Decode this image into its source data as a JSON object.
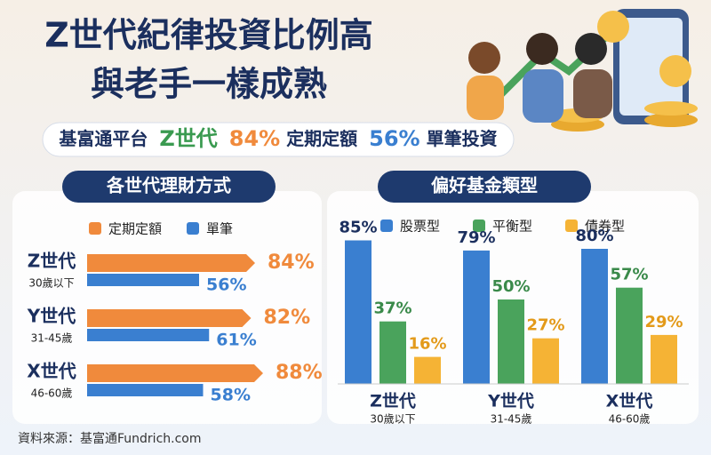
{
  "title_lines": [
    "Z世代紀律投資比例高",
    "與老手一樣成熟"
  ],
  "banner": [
    "基富通平台",
    "Z世代",
    "84%",
    "定期定額",
    "56%",
    "單筆投資"
  ],
  "source": "資料來源：基富通Fundrich.com",
  "chart_data": [
    {
      "type": "hbar",
      "title": "各世代理財方式",
      "categories": [
        "Z世代",
        "Y世代",
        "X世代"
      ],
      "category_notes": [
        "30歲以下",
        "31-45歲",
        "46-60歲"
      ],
      "series": [
        {
          "name": "定期定額",
          "color": "#f08a3c",
          "values": [
            84,
            82,
            88
          ],
          "value_labels": [
            "84%",
            "82%",
            "88%"
          ]
        },
        {
          "name": "單筆",
          "color": "#3a7fd0",
          "values": [
            56,
            61,
            58
          ],
          "value_labels": [
            "56%",
            "61%",
            "58%"
          ]
        }
      ]
    },
    {
      "type": "bar",
      "title": "偏好基金類型",
      "categories": [
        "Z世代",
        "Y世代",
        "X世代"
      ],
      "category_notes": [
        "30歲以下",
        "31-45歲",
        "46-60歲"
      ],
      "series": [
        {
          "name": "股票型",
          "color": "#3a7fd0",
          "values": [
            85,
            79,
            80
          ],
          "value_labels": [
            "85%",
            "79%",
            "80%"
          ]
        },
        {
          "name": "平衡型",
          "color": "#4aa35c",
          "values": [
            37,
            50,
            57
          ],
          "value_labels": [
            "37%",
            "50%",
            "57%"
          ]
        },
        {
          "name": "債券型",
          "color": "#f5b335",
          "values": [
            16,
            27,
            29
          ],
          "value_labels": [
            "16%",
            "27%",
            "29%"
          ]
        }
      ]
    }
  ]
}
